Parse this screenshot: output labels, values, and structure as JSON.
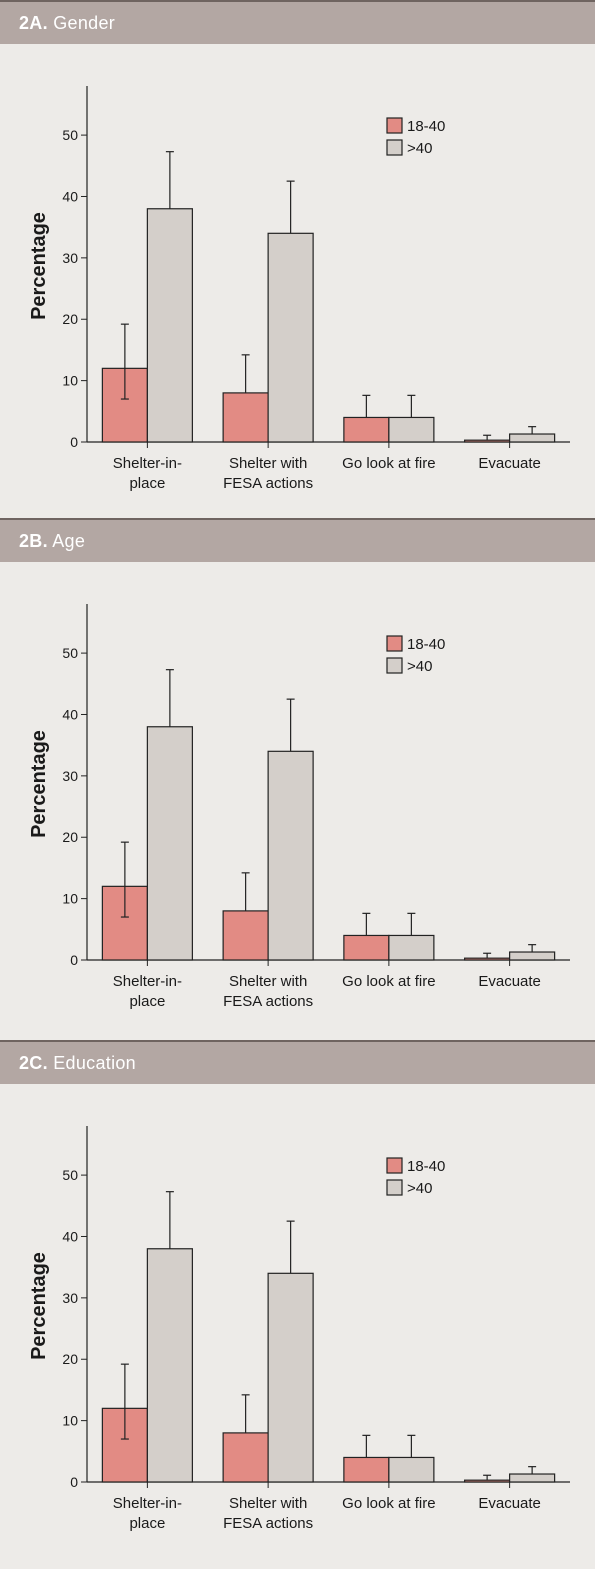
{
  "colors": {
    "header_bg": "#b3a7a3",
    "page_bg": "#edebe8",
    "series_1": "#e28b84",
    "series_2": "#d4cfca",
    "axis": "#222222"
  },
  "panels": [
    {
      "id": "2A.",
      "title": "Gender"
    },
    {
      "id": "2B.",
      "title": "Age"
    },
    {
      "id": "2C.",
      "title": "Education"
    }
  ],
  "chart_data": [
    {
      "type": "bar",
      "title": "",
      "ylabel": "Percentage",
      "xlabel": "",
      "ylim": [
        0,
        58
      ],
      "yticks": [
        0,
        10,
        20,
        30,
        40,
        50
      ],
      "categories": [
        [
          "Shelter-in-",
          "place"
        ],
        [
          "Shelter with",
          "FESA actions"
        ],
        [
          "Go look at fire"
        ],
        [
          "Evacuate"
        ]
      ],
      "series": [
        {
          "name": "18-40",
          "values": [
            12,
            8,
            4,
            0.3
          ],
          "error_low": [
            7,
            8,
            4,
            0.3
          ],
          "error_high": [
            19.2,
            14.2,
            7.6,
            1.1
          ]
        },
        {
          "name": ">40",
          "values": [
            38,
            34,
            4,
            1.3
          ],
          "error_low": [
            38,
            34,
            4,
            1.3
          ],
          "error_high": [
            47.3,
            42.5,
            7.6,
            2.5
          ]
        }
      ],
      "legend_position": "top-right"
    },
    {
      "type": "bar",
      "title": "",
      "ylabel": "Percentage",
      "xlabel": "",
      "ylim": [
        0,
        58
      ],
      "yticks": [
        0,
        10,
        20,
        30,
        40,
        50
      ],
      "categories": [
        [
          "Shelter-in-",
          "place"
        ],
        [
          "Shelter with",
          "FESA actions"
        ],
        [
          "Go look at fire"
        ],
        [
          "Evacuate"
        ]
      ],
      "series": [
        {
          "name": "18-40",
          "values": [
            12,
            8,
            4,
            0.3
          ],
          "error_low": [
            7,
            8,
            4,
            0.3
          ],
          "error_high": [
            19.2,
            14.2,
            7.6,
            1.1
          ]
        },
        {
          "name": ">40",
          "values": [
            38,
            34,
            4,
            1.3
          ],
          "error_low": [
            38,
            34,
            4,
            1.3
          ],
          "error_high": [
            47.3,
            42.5,
            7.6,
            2.5
          ]
        }
      ],
      "legend_position": "top-right"
    },
    {
      "type": "bar",
      "title": "",
      "ylabel": "Percentage",
      "xlabel": "",
      "ylim": [
        0,
        58
      ],
      "yticks": [
        0,
        10,
        20,
        30,
        40,
        50
      ],
      "categories": [
        [
          "Shelter-in-",
          "place"
        ],
        [
          "Shelter with",
          "FESA actions"
        ],
        [
          "Go look at fire"
        ],
        [
          "Evacuate"
        ]
      ],
      "series": [
        {
          "name": "18-40",
          "values": [
            12,
            8,
            4,
            0.3
          ],
          "error_low": [
            7,
            8,
            4,
            0.3
          ],
          "error_high": [
            19.2,
            14.2,
            7.6,
            1.1
          ]
        },
        {
          "name": ">40",
          "values": [
            38,
            34,
            4,
            1.3
          ],
          "error_low": [
            38,
            34,
            4,
            1.3
          ],
          "error_high": [
            47.3,
            42.5,
            7.6,
            2.5
          ]
        }
      ],
      "legend_position": "top-right"
    }
  ]
}
